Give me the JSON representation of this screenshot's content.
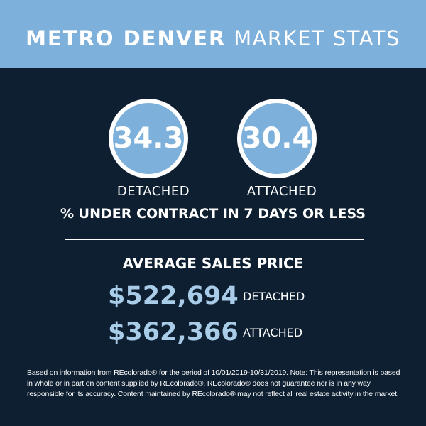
{
  "header": {
    "title_bold": "METRO DENVER",
    "title_light": "MARKET STATS"
  },
  "under_contract": {
    "detached_value": "34.3",
    "detached_label": "DETACHED",
    "attached_value": "30.4",
    "attached_label": "ATTACHED",
    "caption": "% UNDER CONTRACT IN 7 DAYS OR LESS"
  },
  "average_sales_price": {
    "heading": "AVERAGE SALES PRICE",
    "detached_price": "$522,694",
    "detached_label": "DETACHED",
    "attached_price": "$362,366",
    "attached_label": "ATTACHED"
  },
  "disclaimer": "Based on information from REcolorado® for the period of 10/01/2019-10/31/2019. Note: This representation is based in whole or in part on content supplied by REcolorado®. REcolorado® does not guarantee nor is in any way responsible for its accuracy. Content maintained by REcolorado® may not reflect all real estate activity in the market.",
  "colors": {
    "background": "#0e1f31",
    "header": "#7db0da",
    "circle_fill": "#7db0da",
    "price_text": "#a9cce9",
    "text": "#ffffff"
  }
}
